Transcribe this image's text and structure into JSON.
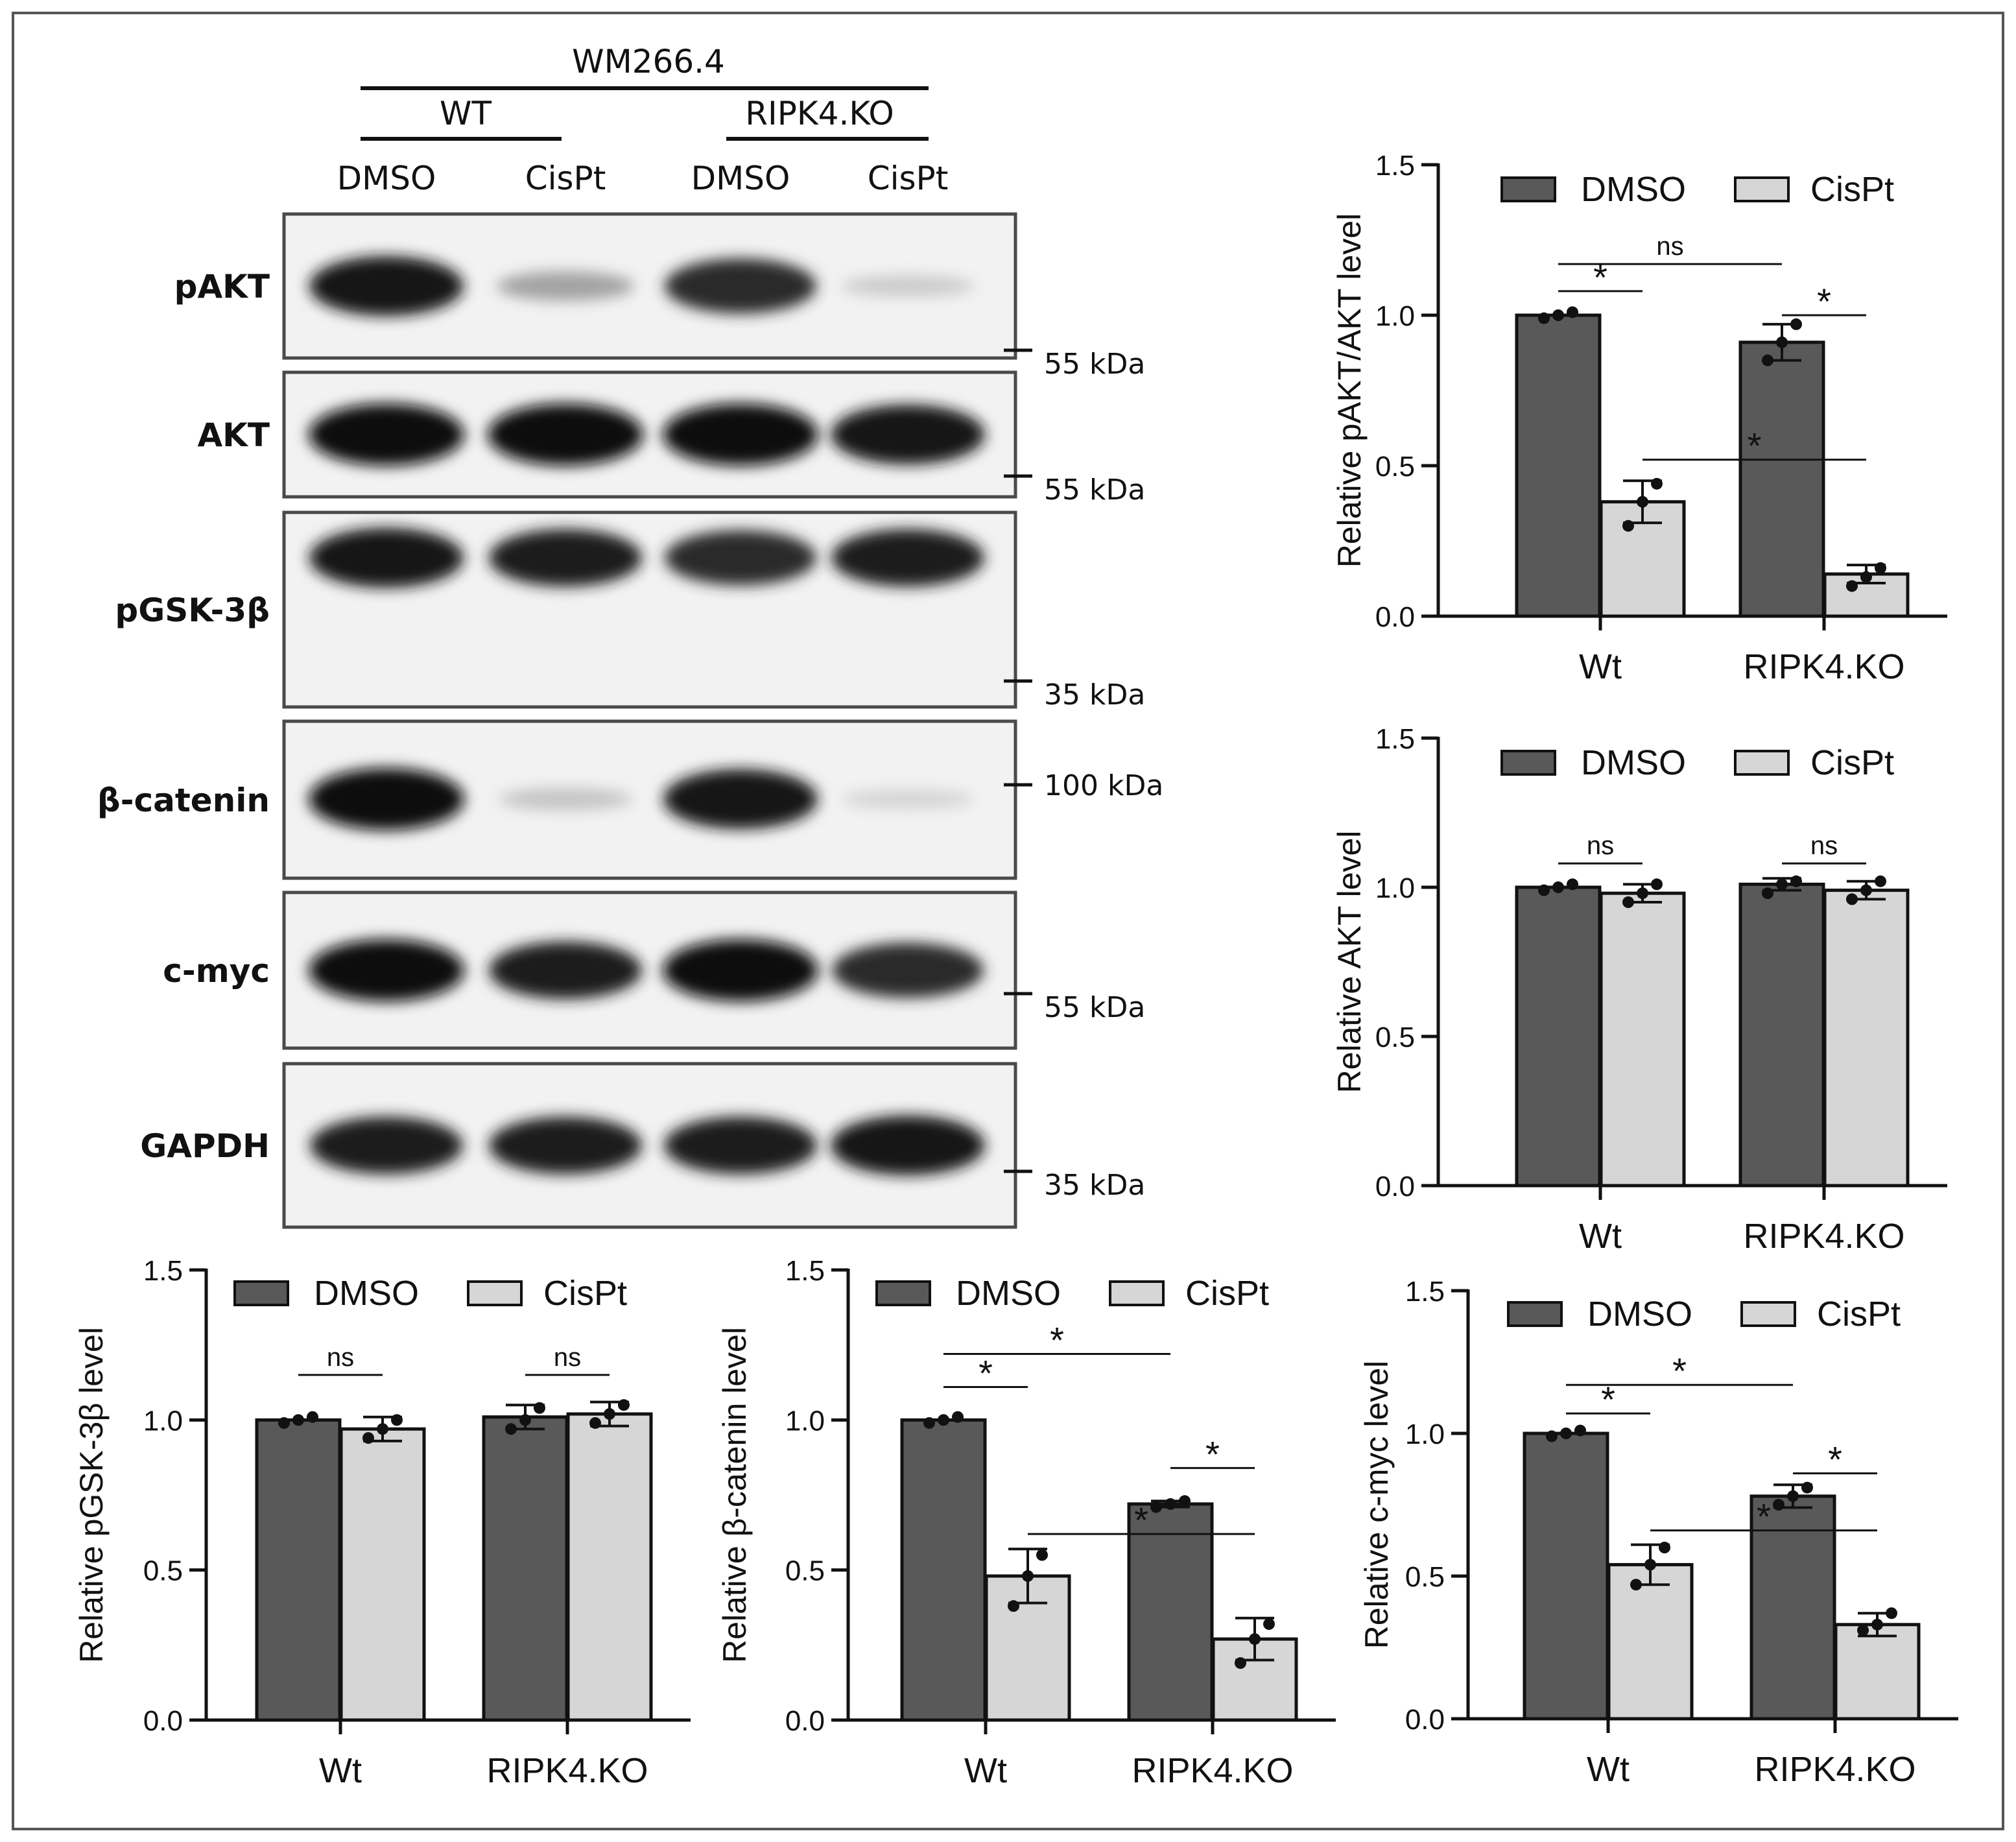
{
  "colors": {
    "dmso": "#595959",
    "cispt": "#d6d6d6",
    "axis": "#111111",
    "frame": "#4a4a4a",
    "band": "#0a0a0a"
  },
  "blot": {
    "cell_line": "WM266.4",
    "group_wt": "WT",
    "group_ko": "RIPK4.KO",
    "lanes": [
      "DMSO",
      "CisPt",
      "DMSO",
      "CisPt"
    ],
    "panels": [
      {
        "label": "pAKT",
        "marker": "55 kDa",
        "band_intensity": [
          0.95,
          0.3,
          0.85,
          0.12
        ]
      },
      {
        "label": "AKT",
        "marker": "55 kDa",
        "band_intensity": [
          1.0,
          1.0,
          1.0,
          0.95
        ]
      },
      {
        "label": "pGSK-3β",
        "marker": "35 kDa",
        "band_intensity": [
          0.95,
          0.9,
          0.85,
          0.9
        ]
      },
      {
        "label": "β-catenin",
        "marker": "100 kDa",
        "band_intensity": [
          1.0,
          0.15,
          0.95,
          0.08
        ]
      },
      {
        "label": "c-myc",
        "marker": "55 kDa",
        "band_intensity": [
          1.0,
          0.9,
          1.0,
          0.85
        ]
      },
      {
        "label": "GAPDH",
        "marker": "35 kDa",
        "band_intensity": [
          0.9,
          0.9,
          0.9,
          0.95
        ]
      }
    ]
  },
  "chart_data": [
    {
      "id": "pakt",
      "type": "bar",
      "ylabel": "Relative pAKT/AKT level",
      "categories": [
        "Wt",
        "RIPK4.KO"
      ],
      "series": [
        {
          "name": "DMSO",
          "values": [
            1.0,
            0.91
          ],
          "errors": [
            0.0,
            0.06
          ],
          "points": [
            [
              0.99,
              1.0,
              1.01
            ],
            [
              0.85,
              0.91,
              0.97
            ]
          ]
        },
        {
          "name": "CisPt",
          "values": [
            0.38,
            0.14
          ],
          "errors": [
            0.07,
            0.03
          ],
          "points": [
            [
              0.3,
              0.38,
              0.44
            ],
            [
              0.1,
              0.13,
              0.16
            ]
          ]
        }
      ],
      "yticks": [
        "0.0",
        "0.5",
        "1.0",
        "1.5"
      ],
      "ylim": [
        0,
        1.5
      ],
      "significance": [
        {
          "label": "*",
          "y": 1.08,
          "from": [
            0,
            0
          ],
          "to": [
            0,
            1
          ]
        },
        {
          "label": "ns",
          "y": 1.17,
          "from": [
            0,
            0
          ],
          "to": [
            1,
            0
          ]
        },
        {
          "label": "*",
          "y": 1.0,
          "from": [
            1,
            0
          ],
          "to": [
            1,
            1
          ]
        },
        {
          "label": "*",
          "y": 0.52,
          "from": [
            0,
            1
          ],
          "to": [
            1,
            1
          ]
        }
      ]
    },
    {
      "id": "akt",
      "type": "bar",
      "ylabel": "Relative AKT level",
      "categories": [
        "Wt",
        "RIPK4.KO"
      ],
      "series": [
        {
          "name": "DMSO",
          "values": [
            1.0,
            1.01
          ],
          "errors": [
            0.0,
            0.02
          ],
          "points": [
            [
              0.99,
              1.0,
              1.01
            ],
            [
              0.98,
              1.01,
              1.02
            ]
          ]
        },
        {
          "name": "CisPt",
          "values": [
            0.98,
            0.99
          ],
          "errors": [
            0.03,
            0.03
          ],
          "points": [
            [
              0.95,
              0.98,
              1.01
            ],
            [
              0.96,
              0.99,
              1.02
            ]
          ]
        }
      ],
      "yticks": [
        "0.0",
        "0.5",
        "1.0",
        "1.5"
      ],
      "ylim": [
        0,
        1.5
      ],
      "significance": [
        {
          "label": "ns",
          "y": 1.08,
          "from": [
            0,
            0
          ],
          "to": [
            0,
            1
          ]
        },
        {
          "label": "ns",
          "y": 1.08,
          "from": [
            1,
            0
          ],
          "to": [
            1,
            1
          ]
        }
      ]
    },
    {
      "id": "pgsk",
      "type": "bar",
      "ylabel": "Relative pGSK-3β level",
      "categories": [
        "Wt",
        "RIPK4.KO"
      ],
      "series": [
        {
          "name": "DMSO",
          "values": [
            1.0,
            1.01
          ],
          "errors": [
            0.0,
            0.04
          ],
          "points": [
            [
              0.99,
              1.0,
              1.01
            ],
            [
              0.97,
              1.0,
              1.04
            ]
          ]
        },
        {
          "name": "CisPt",
          "values": [
            0.97,
            1.02
          ],
          "errors": [
            0.04,
            0.04
          ],
          "points": [
            [
              0.94,
              0.97,
              1.0
            ],
            [
              0.99,
              1.02,
              1.05
            ]
          ]
        }
      ],
      "yticks": [
        "0.0",
        "0.5",
        "1.0",
        "1.5"
      ],
      "ylim": [
        0,
        1.5
      ],
      "significance": [
        {
          "label": "ns",
          "y": 1.15,
          "from": [
            0,
            0
          ],
          "to": [
            0,
            1
          ]
        },
        {
          "label": "ns",
          "y": 1.15,
          "from": [
            1,
            0
          ],
          "to": [
            1,
            1
          ]
        }
      ]
    },
    {
      "id": "bcat",
      "type": "bar",
      "ylabel": "Relative β-catenin level",
      "categories": [
        "Wt",
        "RIPK4.KO"
      ],
      "series": [
        {
          "name": "DMSO",
          "values": [
            1.0,
            0.72
          ],
          "errors": [
            0.0,
            0.01
          ],
          "points": [
            [
              0.99,
              1.0,
              1.01
            ],
            [
              0.71,
              0.72,
              0.73
            ]
          ]
        },
        {
          "name": "CisPt",
          "values": [
            0.48,
            0.27
          ],
          "errors": [
            0.09,
            0.07
          ],
          "points": [
            [
              0.38,
              0.48,
              0.55
            ],
            [
              0.19,
              0.27,
              0.32
            ]
          ]
        }
      ],
      "yticks": [
        "0.0",
        "0.5",
        "1.0",
        "1.5"
      ],
      "ylim": [
        0,
        1.5
      ],
      "significance": [
        {
          "label": "*",
          "y": 1.11,
          "from": [
            0,
            0
          ],
          "to": [
            0,
            1
          ]
        },
        {
          "label": "*",
          "y": 1.22,
          "from": [
            0,
            0
          ],
          "to": [
            1,
            0
          ]
        },
        {
          "label": "*",
          "y": 0.84,
          "from": [
            1,
            0
          ],
          "to": [
            1,
            1
          ]
        },
        {
          "label": "*",
          "y": 0.62,
          "from": [
            0,
            1
          ],
          "to": [
            1,
            1
          ]
        }
      ]
    },
    {
      "id": "cmyc",
      "type": "bar",
      "ylabel": "Relative c-myc level",
      "categories": [
        "Wt",
        "RIPK4.KO"
      ],
      "series": [
        {
          "name": "DMSO",
          "values": [
            1.0,
            0.78
          ],
          "errors": [
            0.0,
            0.04
          ],
          "points": [
            [
              0.99,
              1.0,
              1.01
            ],
            [
              0.75,
              0.78,
              0.81
            ]
          ]
        },
        {
          "name": "CisPt",
          "values": [
            0.54,
            0.33
          ],
          "errors": [
            0.07,
            0.04
          ],
          "points": [
            [
              0.47,
              0.54,
              0.6
            ],
            [
              0.31,
              0.33,
              0.37
            ]
          ]
        }
      ],
      "yticks": [
        "0.0",
        "0.5",
        "1.0",
        "1.5"
      ],
      "ylim": [
        0,
        1.5
      ],
      "significance": [
        {
          "label": "*",
          "y": 1.07,
          "from": [
            0,
            0
          ],
          "to": [
            0,
            1
          ]
        },
        {
          "label": "*",
          "y": 1.17,
          "from": [
            0,
            0
          ],
          "to": [
            1,
            0
          ]
        },
        {
          "label": "*",
          "y": 0.86,
          "from": [
            1,
            0
          ],
          "to": [
            1,
            1
          ]
        },
        {
          "label": "*",
          "y": 0.66,
          "from": [
            0,
            1
          ],
          "to": [
            1,
            1
          ]
        }
      ]
    }
  ]
}
